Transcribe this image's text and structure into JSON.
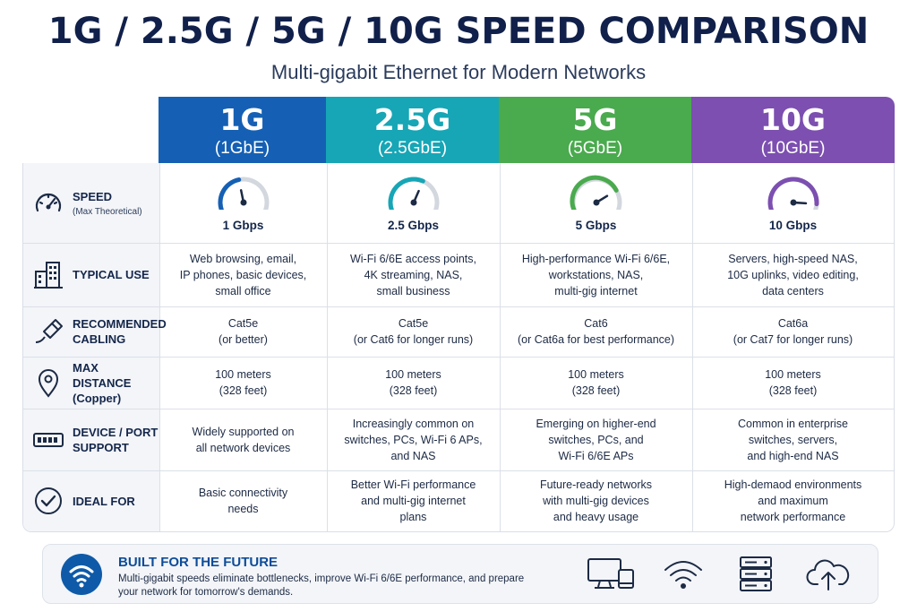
{
  "title": "1G / 2.5G / 5G / 10G SPEED COMPARISON",
  "subtitle": "Multi-gigabit Ethernet for Modern Networks",
  "tiers": [
    {
      "name": "1G",
      "sub": "(1GbE)",
      "color": "#1560b4",
      "gauge": 0.45
    },
    {
      "name": "2.5G",
      "sub": "(2.5GbE)",
      "color": "#16a6b6",
      "gauge": 0.6
    },
    {
      "name": "5G",
      "sub": "(5GbE)",
      "color": "#4aaa4e",
      "gauge": 0.75
    },
    {
      "name": "10G",
      "sub": "(10GbE)",
      "color": "#7c4fb0",
      "gauge": 0.9
    }
  ],
  "rows": [
    {
      "icon": "speedometer-icon",
      "label": "SPEED",
      "sublabel": "(Max Theoretical)",
      "cells": [
        "1 Gbps",
        "2.5 Gbps",
        "5 Gbps",
        "10 Gbps"
      ]
    },
    {
      "icon": "building-icon",
      "label": "TYPICAL USE",
      "sublabel": "",
      "cells": [
        "Web browsing, email,\nIP phones, basic devices,\nsmall office",
        "Wi-Fi 6/6E access points,\n4K streaming, NAS,\nsmall business",
        "High-performance Wi-Fi 6/6E,\nworkstations, NAS,\nmulti-gig internet",
        "Servers, high-speed NAS,\n10G uplinks, video editing,\ndata centers"
      ]
    },
    {
      "icon": "ethernet-cable-icon",
      "label": "RECOMMENDED\nCABLING",
      "sublabel": "",
      "cells": [
        "Cat5e\n(or better)",
        "Cat5e\n(or Cat6 for longer runs)",
        "Cat6\n(or Cat6a for best performance)",
        "Cat6a\n(or Cat7 for longer runs)"
      ]
    },
    {
      "icon": "location-pin-icon",
      "label": "MAX DISTANCE\n(Copper)",
      "sublabel": "",
      "cells": [
        "100 meters\n(328 feet)",
        "100 meters\n(328 feet)",
        "100 meters\n(328 feet)",
        "100 meters\n(328 feet)"
      ]
    },
    {
      "icon": "network-switch-icon",
      "label": "DEVICE / PORT\nSUPPORT",
      "sublabel": "",
      "cells": [
        "Widely supported on\nall network devices",
        "Increasingly common on\nswitches, PCs, Wi-Fi 6 APs,\nand NAS",
        "Emerging on higher-end\nswitches, PCs, and\nWi-Fi 6/6E APs",
        "Common in enterprise\nswitches, servers,\nand high-end NAS"
      ]
    },
    {
      "icon": "check-circle-icon",
      "label": "IDEAL FOR",
      "sublabel": "",
      "cells": [
        "Basic connectivity\nneeds",
        "Better Wi-Fi performance\nand multi-gig internet\nplans",
        "Future-ready networks\nwith multi-gig devices\nand heavy usage",
        "High-demaod environments\nand maximum\nnetwork performance"
      ]
    }
  ],
  "footer": {
    "title": "BUILT FOR THE FUTURE",
    "text": "Multi-gigabit speeds eliminate bottlenecks, improve Wi-Fi 6/6E performance, and prepare your network for tomorrow's demands.",
    "icons": [
      "wifi-icon",
      "computer-icon",
      "wifi-icon",
      "server-icon",
      "cloud-upload-icon"
    ]
  }
}
